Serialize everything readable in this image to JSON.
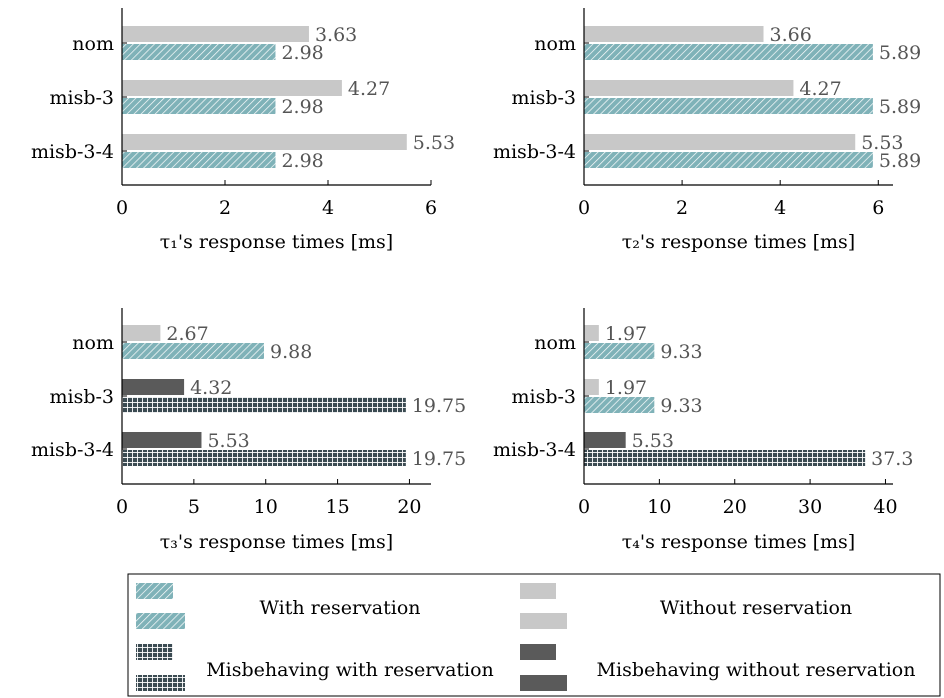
{
  "colors": {
    "with_reservation": "#7fb2b8",
    "without_reservation": "#c8c8c8",
    "misbehaving_with_reservation": "#3b4b52",
    "misbehaving_without_reservation": "#5a5a5a",
    "axis": "#000000",
    "value_label": "#555555"
  },
  "chart_data": [
    {
      "type": "bar",
      "orientation": "horizontal",
      "xlabel": "τ₁'s response times [ms]",
      "categories": [
        "nom",
        "misb-3",
        "misb-3-4"
      ],
      "xlim": [
        0,
        6
      ],
      "xticks": [
        "0",
        "2",
        "4",
        "6"
      ],
      "series": [
        {
          "kind": "without_reservation",
          "values": [
            3.63,
            4.27,
            5.53
          ],
          "labels": [
            "3.63",
            "4.27",
            "5.53"
          ]
        },
        {
          "kind": "with_reservation",
          "values": [
            2.98,
            2.98,
            2.98
          ],
          "labels": [
            "2.98",
            "2.98",
            "2.98"
          ]
        }
      ]
    },
    {
      "type": "bar",
      "orientation": "horizontal",
      "xlabel": "τ₂'s response times [ms]",
      "categories": [
        "nom",
        "misb-3",
        "misb-3-4"
      ],
      "xlim": [
        0,
        6.3
      ],
      "xticks": [
        "0",
        "2",
        "4",
        "6"
      ],
      "series": [
        {
          "kind": "without_reservation",
          "values": [
            3.66,
            4.27,
            5.53
          ],
          "labels": [
            "3.66",
            "4.27",
            "5.53"
          ]
        },
        {
          "kind": "with_reservation",
          "values": [
            5.89,
            5.89,
            5.89
          ],
          "labels": [
            "5.89",
            "5.89",
            "5.89"
          ]
        }
      ]
    },
    {
      "type": "bar",
      "orientation": "horizontal",
      "xlabel": "τ₃'s response times [ms]",
      "categories": [
        "nom",
        "misb-3",
        "misb-3-4"
      ],
      "xlim": [
        0,
        21.5
      ],
      "xticks": [
        "0",
        "5",
        "10",
        "15",
        "20"
      ],
      "series": [
        {
          "kind": [
            "without_reservation",
            "misbehaving_without_reservation",
            "misbehaving_without_reservation"
          ],
          "values": [
            2.67,
            4.32,
            5.53
          ],
          "labels": [
            "2.67",
            "4.32",
            "5.53"
          ]
        },
        {
          "kind": [
            "with_reservation",
            "misbehaving_with_reservation",
            "misbehaving_with_reservation"
          ],
          "values": [
            9.88,
            19.75,
            19.75
          ],
          "labels": [
            "9.88",
            "19.75",
            "19.75"
          ]
        }
      ]
    },
    {
      "type": "bar",
      "orientation": "horizontal",
      "xlabel": "τ₄'s response times [ms]",
      "categories": [
        "nom",
        "misb-3",
        "misb-3-4"
      ],
      "xlim": [
        0,
        41
      ],
      "xticks": [
        "0",
        "10",
        "20",
        "30",
        "40"
      ],
      "series": [
        {
          "kind": [
            "without_reservation",
            "without_reservation",
            "misbehaving_without_reservation"
          ],
          "values": [
            1.97,
            1.97,
            5.53
          ],
          "labels": [
            "1.97",
            "1.97",
            "5.53"
          ]
        },
        {
          "kind": [
            "with_reservation",
            "with_reservation",
            "misbehaving_with_reservation"
          ],
          "values": [
            9.33,
            9.33,
            37.3
          ],
          "labels": [
            "9.33",
            "9.33",
            "37.3"
          ]
        }
      ]
    }
  ],
  "legend": {
    "placement": "bottom",
    "entries": [
      {
        "kind": "with_reservation",
        "label": "With reservation"
      },
      {
        "kind": "without_reservation",
        "label": "Without reservation"
      },
      {
        "kind": "misbehaving_with_reservation",
        "label": "Misbehaving with reservation"
      },
      {
        "kind": "misbehaving_without_reservation",
        "label": "Misbehaving without reservation"
      }
    ]
  }
}
